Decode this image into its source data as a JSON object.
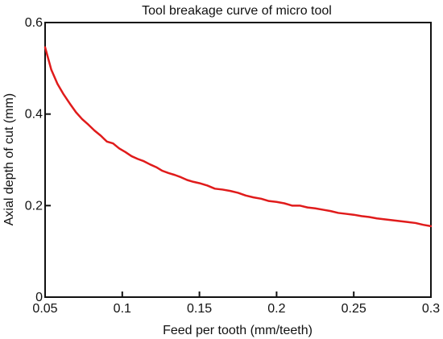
{
  "chart_data": {
    "type": "line",
    "title": "Tool breakage curve of micro tool",
    "xlabel": "Feed per tooth (mm/teeth)",
    "ylabel": "Axial depth of  cut (mm)",
    "xlim": [
      0.05,
      0.3
    ],
    "ylim": [
      0,
      0.6
    ],
    "xticks": [
      0.05,
      0.1,
      0.15,
      0.2,
      0.25,
      0.3
    ],
    "xtick_labels": [
      "0.05",
      "0.1",
      "0.15",
      "0.2",
      "0.25",
      "0.3"
    ],
    "yticks": [
      0,
      0.2,
      0.4,
      0.6
    ],
    "ytick_labels": [
      "0",
      "0.2",
      "0.4",
      "0.6"
    ],
    "grid": false,
    "legend": "none",
    "series": [
      {
        "color": "#e01b1b",
        "x": [
          0.05,
          0.054,
          0.058,
          0.062,
          0.066,
          0.07,
          0.074,
          0.078,
          0.082,
          0.086,
          0.09,
          0.094,
          0.098,
          0.102,
          0.106,
          0.11,
          0.114,
          0.118,
          0.122,
          0.126,
          0.13,
          0.134,
          0.138,
          0.142,
          0.146,
          0.15,
          0.155,
          0.16,
          0.165,
          0.17,
          0.175,
          0.18,
          0.185,
          0.19,
          0.195,
          0.2,
          0.205,
          0.21,
          0.215,
          0.22,
          0.225,
          0.23,
          0.235,
          0.24,
          0.245,
          0.25,
          0.255,
          0.26,
          0.265,
          0.27,
          0.275,
          0.28,
          0.285,
          0.29,
          0.295,
          0.3
        ],
        "y": [
          0.546,
          0.497,
          0.466,
          0.443,
          0.423,
          0.404,
          0.389,
          0.377,
          0.364,
          0.353,
          0.34,
          0.336,
          0.325,
          0.317,
          0.308,
          0.302,
          0.297,
          0.29,
          0.284,
          0.276,
          0.271,
          0.267,
          0.262,
          0.256,
          0.252,
          0.249,
          0.244,
          0.237,
          0.235,
          0.232,
          0.228,
          0.222,
          0.218,
          0.215,
          0.21,
          0.208,
          0.205,
          0.2,
          0.2,
          0.196,
          0.194,
          0.191,
          0.188,
          0.184,
          0.182,
          0.18,
          0.177,
          0.175,
          0.172,
          0.17,
          0.168,
          0.166,
          0.164,
          0.162,
          0.158,
          0.155
        ]
      }
    ]
  }
}
